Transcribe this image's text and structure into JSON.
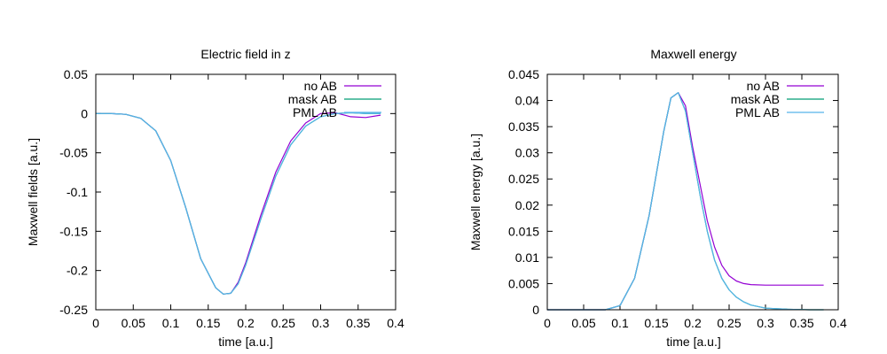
{
  "colors": {
    "no_ab": "#9400d3",
    "mask_ab": "#009e73",
    "pml_ab": "#56b4e9",
    "axes": "#000000",
    "background": "#ffffff"
  },
  "chart_data": [
    {
      "type": "line",
      "title": "Electric field in z",
      "xlabel": "time [a.u.]",
      "ylabel": "Maxwell fields [a.u.]",
      "xlim": [
        0,
        0.4
      ],
      "ylim": [
        -0.25,
        0.05
      ],
      "xticks": [
        0,
        0.05,
        0.1,
        0.15,
        0.2,
        0.25,
        0.3,
        0.35,
        0.4
      ],
      "xtick_labels": [
        "0",
        "0.05",
        "0.1",
        "0.15",
        "0.2",
        "0.25",
        "0.3",
        "0.35",
        "0.4"
      ],
      "yticks": [
        -0.25,
        -0.2,
        -0.15,
        -0.1,
        -0.05,
        0,
        0.05
      ],
      "ytick_labels": [
        "-0.25",
        "-0.2",
        "-0.15",
        "-0.1",
        "-0.05",
        "0",
        "0.05"
      ],
      "legend_position": "top-right",
      "series": [
        {
          "name": "no AB",
          "x": [
            0,
            0.02,
            0.04,
            0.06,
            0.08,
            0.1,
            0.12,
            0.14,
            0.16,
            0.17,
            0.18,
            0.19,
            0.2,
            0.22,
            0.24,
            0.26,
            0.28,
            0.3,
            0.32,
            0.34,
            0.36,
            0.38
          ],
          "y": [
            0,
            0,
            -0.001,
            -0.006,
            -0.022,
            -0.06,
            -0.12,
            -0.185,
            -0.222,
            -0.23,
            -0.229,
            -0.215,
            -0.19,
            -0.13,
            -0.075,
            -0.035,
            -0.012,
            0,
            0.001,
            -0.004,
            -0.005,
            -0.002
          ]
        },
        {
          "name": "mask AB",
          "x": [
            0,
            0.02,
            0.04,
            0.06,
            0.08,
            0.1,
            0.12,
            0.14,
            0.16,
            0.17,
            0.18,
            0.19,
            0.2,
            0.22,
            0.24,
            0.26,
            0.28,
            0.3,
            0.32,
            0.34,
            0.36,
            0.38
          ],
          "y": [
            0,
            0,
            -0.001,
            -0.006,
            -0.022,
            -0.06,
            -0.12,
            -0.185,
            -0.222,
            -0.23,
            -0.229,
            -0.217,
            -0.193,
            -0.135,
            -0.08,
            -0.04,
            -0.016,
            -0.004,
            0,
            0.001,
            0,
            0
          ]
        },
        {
          "name": "PML AB",
          "x": [
            0,
            0.02,
            0.04,
            0.06,
            0.08,
            0.1,
            0.12,
            0.14,
            0.16,
            0.17,
            0.18,
            0.19,
            0.2,
            0.22,
            0.24,
            0.26,
            0.28,
            0.3,
            0.32,
            0.34,
            0.36,
            0.38
          ],
          "y": [
            0,
            0,
            -0.001,
            -0.006,
            -0.022,
            -0.06,
            -0.12,
            -0.185,
            -0.222,
            -0.23,
            -0.229,
            -0.217,
            -0.193,
            -0.135,
            -0.08,
            -0.04,
            -0.016,
            -0.004,
            0,
            0.001,
            0,
            0
          ]
        }
      ]
    },
    {
      "type": "line",
      "title": "Maxwell energy",
      "xlabel": "time [a.u.]",
      "ylabel": "Maxwell energy [a.u.]",
      "xlim": [
        0,
        0.4
      ],
      "ylim": [
        0,
        0.045
      ],
      "xticks": [
        0,
        0.05,
        0.1,
        0.15,
        0.2,
        0.25,
        0.3,
        0.35,
        0.4
      ],
      "xtick_labels": [
        "0",
        "0.05",
        "0.1",
        "0.15",
        "0.2",
        "0.25",
        "0.3",
        "0.35",
        "0.4"
      ],
      "yticks": [
        0,
        0.005,
        0.01,
        0.015,
        0.02,
        0.025,
        0.03,
        0.035,
        0.04,
        0.045
      ],
      "ytick_labels": [
        "0",
        "0.005",
        "0.01",
        "0.015",
        "0.02",
        "0.025",
        "0.03",
        "0.035",
        "0.04",
        "0.045"
      ],
      "legend_position": "top-right",
      "series": [
        {
          "name": "no AB",
          "x": [
            0,
            0.05,
            0.08,
            0.1,
            0.12,
            0.14,
            0.15,
            0.16,
            0.17,
            0.18,
            0.19,
            0.2,
            0.21,
            0.22,
            0.23,
            0.24,
            0.25,
            0.26,
            0.27,
            0.28,
            0.3,
            0.33,
            0.36,
            0.38
          ],
          "y": [
            0,
            0,
            0,
            0.0008,
            0.006,
            0.018,
            0.026,
            0.034,
            0.0405,
            0.0415,
            0.039,
            0.031,
            0.024,
            0.017,
            0.012,
            0.0085,
            0.0065,
            0.0055,
            0.005,
            0.0048,
            0.0047,
            0.0047,
            0.0047,
            0.0047
          ]
        },
        {
          "name": "mask AB",
          "x": [
            0,
            0.05,
            0.08,
            0.1,
            0.12,
            0.14,
            0.15,
            0.16,
            0.17,
            0.18,
            0.19,
            0.2,
            0.21,
            0.22,
            0.23,
            0.24,
            0.25,
            0.26,
            0.27,
            0.28,
            0.3,
            0.33,
            0.36,
            0.38
          ],
          "y": [
            0,
            0,
            0,
            0.0008,
            0.006,
            0.018,
            0.026,
            0.034,
            0.0405,
            0.0415,
            0.038,
            0.03,
            0.022,
            0.015,
            0.0095,
            0.006,
            0.0038,
            0.0024,
            0.0015,
            0.0009,
            0.0003,
            0.0001,
            0,
            0
          ]
        },
        {
          "name": "PML AB",
          "x": [
            0,
            0.05,
            0.08,
            0.1,
            0.12,
            0.14,
            0.15,
            0.16,
            0.17,
            0.18,
            0.19,
            0.2,
            0.21,
            0.22,
            0.23,
            0.24,
            0.25,
            0.26,
            0.27,
            0.28,
            0.3,
            0.33,
            0.36,
            0.38
          ],
          "y": [
            0,
            0,
            0,
            0.0008,
            0.006,
            0.018,
            0.026,
            0.034,
            0.0405,
            0.0415,
            0.038,
            0.03,
            0.022,
            0.015,
            0.0095,
            0.006,
            0.0038,
            0.0024,
            0.0015,
            0.0009,
            0.0003,
            0.0001,
            0,
            0
          ]
        }
      ]
    }
  ]
}
